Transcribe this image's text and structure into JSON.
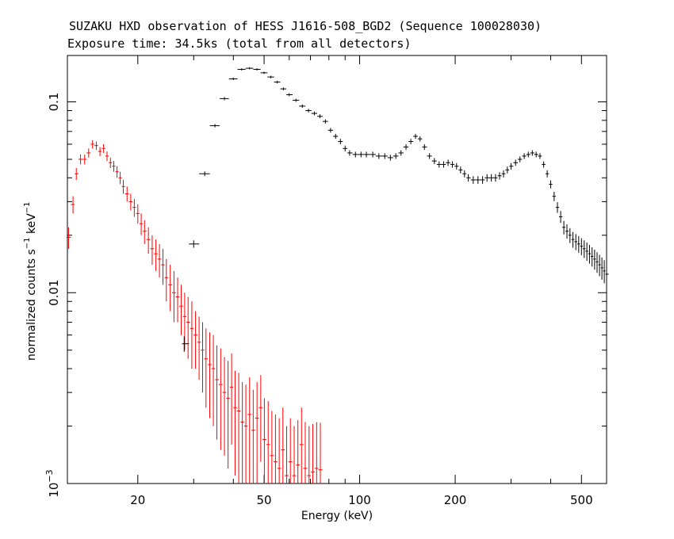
{
  "chart_data": {
    "type": "scatter",
    "title": "SUZAKU HXD observation of HESS J1616-508_BGD2 (Sequence 100028030)",
    "subtitle": "Exposure time: 34.5ks (total from all detectors)",
    "xlabel": "Energy (keV)",
    "ylabel_main": "normalized counts s",
    "ylabel_sup1": "−1",
    "ylabel_mid": " keV",
    "ylabel_sup2": "−1",
    "x_scale": "log",
    "y_scale": "log",
    "xlim": [
      12,
      600
    ],
    "ylim": [
      0.001,
      0.175
    ],
    "x_ticks": [
      {
        "value": 20,
        "label": "20"
      },
      {
        "value": 50,
        "label": "50"
      },
      {
        "value": 100,
        "label": "100"
      },
      {
        "value": 200,
        "label": "200"
      },
      {
        "value": 500,
        "label": "500"
      }
    ],
    "y_ticks": [
      {
        "value": 0.1,
        "label": "0.1"
      },
      {
        "value": 0.01,
        "label": "0.01"
      },
      {
        "value": 0.001,
        "label": "10",
        "sup": "−3"
      }
    ],
    "grid": false,
    "series": [
      {
        "id": "pin",
        "color": "#ff0000",
        "points": [
          [
            12.1,
            0.0195,
            0.0025
          ],
          [
            12.5,
            0.029,
            0.003
          ],
          [
            12.8,
            0.042,
            0.003
          ],
          [
            13.2,
            0.05,
            0.003
          ],
          [
            13.6,
            0.05,
            0.003
          ],
          [
            14.0,
            0.054,
            0.003
          ],
          [
            14.4,
            0.06,
            0.003
          ],
          [
            14.8,
            0.059,
            0.003
          ],
          [
            15.2,
            0.055,
            0.003
          ],
          [
            15.6,
            0.057,
            0.003
          ],
          [
            16.0,
            0.052,
            0.003
          ],
          [
            16.4,
            0.048,
            0.003
          ],
          [
            16.8,
            0.046,
            0.003
          ],
          [
            17.2,
            0.043,
            0.003
          ],
          [
            17.6,
            0.04,
            0.003
          ],
          [
            18.0,
            0.036,
            0.003
          ],
          [
            18.5,
            0.033,
            0.003
          ],
          [
            19.0,
            0.03,
            0.003
          ],
          [
            19.5,
            0.028,
            0.003
          ],
          [
            20.0,
            0.026,
            0.003
          ],
          [
            20.5,
            0.023,
            0.003
          ],
          [
            21.0,
            0.021,
            0.003
          ],
          [
            21.6,
            0.019,
            0.003
          ],
          [
            22.2,
            0.017,
            0.003
          ],
          [
            22.8,
            0.016,
            0.003
          ],
          [
            23.4,
            0.015,
            0.003
          ],
          [
            24.0,
            0.014,
            0.003
          ],
          [
            24.6,
            0.012,
            0.003
          ],
          [
            25.3,
            0.011,
            0.003
          ],
          [
            26.0,
            0.01,
            0.003
          ],
          [
            26.7,
            0.0095,
            0.0025
          ],
          [
            27.4,
            0.0085,
            0.0025
          ],
          [
            28.1,
            0.0075,
            0.0025
          ],
          [
            28.8,
            0.007,
            0.0025
          ],
          [
            29.6,
            0.0065,
            0.0025
          ],
          [
            30.4,
            0.006,
            0.002
          ],
          [
            31.2,
            0.0055,
            0.002
          ],
          [
            32.0,
            0.005,
            0.002
          ],
          [
            32.8,
            0.0045,
            0.002
          ],
          [
            33.7,
            0.0042,
            0.002
          ],
          [
            34.6,
            0.004,
            0.002
          ],
          [
            35.5,
            0.0035,
            0.0018
          ],
          [
            36.5,
            0.0033,
            0.0018
          ],
          [
            37.5,
            0.003,
            0.0016
          ],
          [
            38.5,
            0.0028,
            0.0016
          ],
          [
            39.5,
            0.0032,
            0.0016
          ],
          [
            40.5,
            0.0025,
            0.0014
          ],
          [
            41.6,
            0.0024,
            0.0014
          ],
          [
            42.7,
            0.0021,
            0.0013
          ],
          [
            43.8,
            0.002,
            0.0013
          ],
          [
            45.0,
            0.0023,
            0.0013
          ],
          [
            46.2,
            0.0019,
            0.0012
          ],
          [
            47.5,
            0.0022,
            0.0012
          ],
          [
            48.8,
            0.0025,
            0.0012
          ],
          [
            50.1,
            0.0017,
            0.0011
          ],
          [
            51.5,
            0.0016,
            0.0011
          ],
          [
            52.9,
            0.0014,
            0.001
          ],
          [
            54.3,
            0.0013,
            0.001
          ],
          [
            55.8,
            0.0012,
            0.001
          ],
          [
            57.3,
            0.0015,
            0.001
          ],
          [
            58.9,
            0.0011,
            0.0009
          ],
          [
            60.5,
            0.0013,
            0.0009
          ],
          [
            62.2,
            0.0011,
            0.0009
          ],
          [
            63.9,
            0.00125,
            0.0009
          ],
          [
            65.6,
            0.0016,
            0.0009
          ],
          [
            67.4,
            0.0012,
            0.0009
          ],
          [
            69.3,
            0.0011,
            0.0009
          ],
          [
            71.2,
            0.00115,
            0.0009
          ],
          [
            73.2,
            0.0012,
            0.0009
          ],
          [
            75.2,
            0.00118,
            0.0009
          ]
        ]
      },
      {
        "id": "gso",
        "color": "#000000",
        "points": [
          [
            28.0,
            0.0054,
            0.0005
          ],
          [
            30.0,
            0.018,
            0.0008
          ],
          [
            32.5,
            0.042,
            0.0012
          ],
          [
            35.0,
            0.075,
            0.0015
          ],
          [
            37.5,
            0.104,
            0.002
          ],
          [
            40.0,
            0.132,
            0.002
          ],
          [
            42.5,
            0.148,
            0.002
          ],
          [
            45.0,
            0.15,
            0.002
          ],
          [
            47.5,
            0.148,
            0.002
          ],
          [
            50.0,
            0.142,
            0.002
          ],
          [
            52.5,
            0.135,
            0.002
          ],
          [
            55.0,
            0.127,
            0.002
          ],
          [
            57.5,
            0.117,
            0.002
          ],
          [
            60.0,
            0.109,
            0.002
          ],
          [
            63.0,
            0.102,
            0.002
          ],
          [
            66.0,
            0.095,
            0.002
          ],
          [
            69.0,
            0.09,
            0.002
          ],
          [
            72.0,
            0.087,
            0.002
          ],
          [
            75.0,
            0.084,
            0.002
          ],
          [
            78.0,
            0.079,
            0.002
          ],
          [
            81.0,
            0.071,
            0.002
          ],
          [
            84.0,
            0.066,
            0.002
          ],
          [
            87.0,
            0.062,
            0.002
          ],
          [
            90.0,
            0.057,
            0.002
          ],
          [
            93.0,
            0.054,
            0.0018
          ],
          [
            97.0,
            0.053,
            0.0018
          ],
          [
            101.0,
            0.053,
            0.0018
          ],
          [
            105.0,
            0.053,
            0.0018
          ],
          [
            110.0,
            0.053,
            0.0018
          ],
          [
            115.0,
            0.052,
            0.0018
          ],
          [
            120.0,
            0.052,
            0.0018
          ],
          [
            125.0,
            0.051,
            0.0018
          ],
          [
            130.0,
            0.052,
            0.0018
          ],
          [
            135.0,
            0.054,
            0.0018
          ],
          [
            140.0,
            0.058,
            0.002
          ],
          [
            145.0,
            0.062,
            0.002
          ],
          [
            150.0,
            0.066,
            0.002
          ],
          [
            155.0,
            0.064,
            0.002
          ],
          [
            160.0,
            0.058,
            0.002
          ],
          [
            166.0,
            0.052,
            0.0018
          ],
          [
            172.0,
            0.049,
            0.0018
          ],
          [
            178.0,
            0.047,
            0.0018
          ],
          [
            184.0,
            0.047,
            0.0018
          ],
          [
            190.0,
            0.048,
            0.0018
          ],
          [
            196.0,
            0.047,
            0.0018
          ],
          [
            202.0,
            0.046,
            0.0018
          ],
          [
            208.0,
            0.044,
            0.0018
          ],
          [
            214.0,
            0.042,
            0.0018
          ],
          [
            220.0,
            0.04,
            0.0018
          ],
          [
            228.0,
            0.039,
            0.0018
          ],
          [
            236.0,
            0.039,
            0.0018
          ],
          [
            244.0,
            0.039,
            0.0018
          ],
          [
            252.0,
            0.04,
            0.0018
          ],
          [
            260.0,
            0.04,
            0.0018
          ],
          [
            268.0,
            0.04,
            0.0018
          ],
          [
            276.0,
            0.041,
            0.0018
          ],
          [
            284.0,
            0.042,
            0.0018
          ],
          [
            292.0,
            0.044,
            0.0018
          ],
          [
            300.0,
            0.046,
            0.0018
          ],
          [
            310.0,
            0.048,
            0.0018
          ],
          [
            320.0,
            0.05,
            0.0018
          ],
          [
            330.0,
            0.052,
            0.0018
          ],
          [
            340.0,
            0.053,
            0.0018
          ],
          [
            350.0,
            0.054,
            0.0018
          ],
          [
            360.0,
            0.053,
            0.0018
          ],
          [
            370.0,
            0.052,
            0.0018
          ],
          [
            380.0,
            0.047,
            0.0018
          ],
          [
            390.0,
            0.042,
            0.0018
          ],
          [
            400.0,
            0.037,
            0.0018
          ],
          [
            410.0,
            0.032,
            0.0018
          ],
          [
            420.0,
            0.028,
            0.0018
          ],
          [
            430.0,
            0.025,
            0.0018
          ],
          [
            440.0,
            0.022,
            0.0018
          ],
          [
            450.0,
            0.021,
            0.0018
          ],
          [
            460.0,
            0.02,
            0.0018
          ],
          [
            470.0,
            0.019,
            0.0018
          ],
          [
            480.0,
            0.0185,
            0.0018
          ],
          [
            490.0,
            0.018,
            0.0018
          ],
          [
            500.0,
            0.0175,
            0.0018
          ],
          [
            510.0,
            0.017,
            0.0018
          ],
          [
            520.0,
            0.0165,
            0.0018
          ],
          [
            530.0,
            0.016,
            0.0018
          ],
          [
            540.0,
            0.0155,
            0.0018
          ],
          [
            550.0,
            0.015,
            0.0018
          ],
          [
            560.0,
            0.0145,
            0.0018
          ],
          [
            570.0,
            0.014,
            0.0018
          ],
          [
            580.0,
            0.0135,
            0.0018
          ],
          [
            590.0,
            0.013,
            0.0018
          ],
          [
            600.0,
            0.0125,
            0.0018
          ]
        ]
      }
    ]
  }
}
